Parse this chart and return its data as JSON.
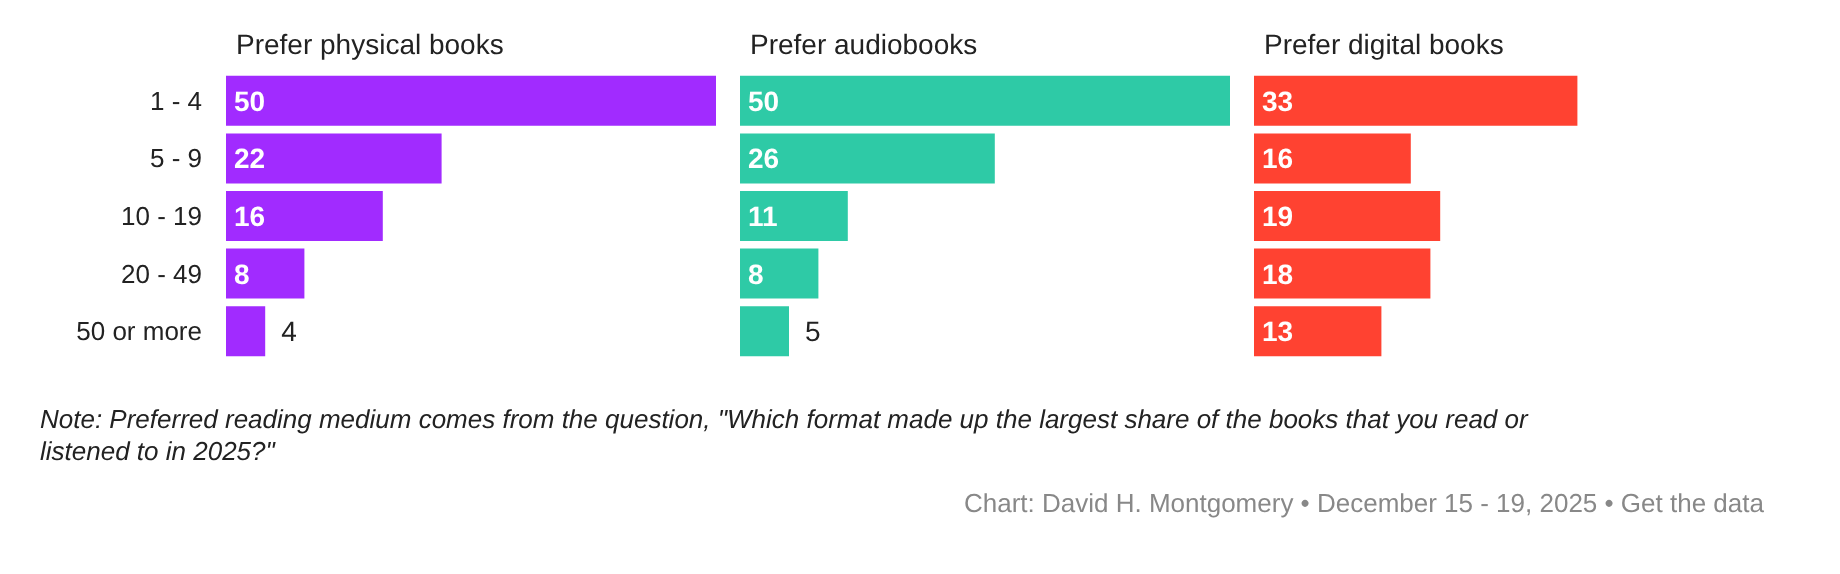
{
  "chart_data": [
    {
      "type": "bar",
      "orientation": "horizontal",
      "title": "Prefer physical books",
      "categories": [
        "1 - 4",
        "5 - 9",
        "10 - 19",
        "20 - 49",
        "50 or more"
      ],
      "values": [
        50,
        22,
        16,
        8,
        4
      ],
      "color": "#a12bff",
      "tick_labels": "y",
      "data_labels": true,
      "annotations": [
        "Note: Preferred reading medium comes from the question, \"Which format made up the largest share of the books that you read or listened to in 2025?\"",
        "Chart: David H. Montgomery • December 15 - 19, 2025 • Get the data"
      ]
    },
    {
      "type": "bar",
      "orientation": "horizontal",
      "title": "Prefer audiobooks",
      "values": [
        50,
        26,
        11,
        8,
        5
      ],
      "color": "#2ecaa6",
      "tick_labels": false,
      "data_labels": true
    },
    {
      "type": "bar",
      "orientation": "horizontal",
      "title": "Prefer digital books",
      "values": [
        33,
        16,
        19,
        18,
        13
      ],
      "color": "#ff4231",
      "tick_labels": false,
      "data_labels": true
    }
  ]
}
